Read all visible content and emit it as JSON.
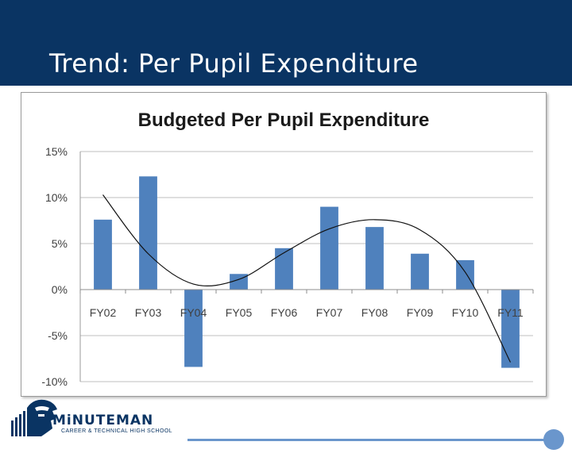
{
  "slide": {
    "title": "Trend: Per Pupil Expenditure"
  },
  "colors": {
    "header": "#0a3463",
    "bar": "#4f81bd",
    "accent": "#6a96cc"
  },
  "logo": {
    "name": "MiNUTEMAN",
    "subtitle": "CAREER & TECHNICAL HIGH SCHOOL"
  },
  "chart_data": {
    "type": "bar",
    "title": "Budgeted Per Pupil Expenditure",
    "categories": [
      "FY02",
      "FY03",
      "FY04",
      "FY05",
      "FY06",
      "FY07",
      "FY08",
      "FY09",
      "FY10",
      "FY11"
    ],
    "values": [
      7.6,
      12.3,
      -8.4,
      1.7,
      4.5,
      9.0,
      6.8,
      3.9,
      3.2,
      -8.5
    ],
    "yunit": "%",
    "ylim": [
      -10,
      15
    ],
    "yticks": [
      15,
      10,
      5,
      0,
      -5,
      -10
    ],
    "ytick_labels": [
      "15%",
      "10%",
      "5%",
      "0%",
      "-5%",
      "-10%"
    ],
    "grid": true,
    "legend": "none",
    "trendline": {
      "type": "polynomial",
      "points": [
        [
          0,
          10.3
        ],
        [
          1,
          3.9
        ],
        [
          2,
          0.6
        ],
        [
          3,
          1.1
        ],
        [
          4,
          4.0
        ],
        [
          5,
          6.6
        ],
        [
          6,
          7.6
        ],
        [
          7,
          6.5
        ],
        [
          8,
          1.9
        ],
        [
          9,
          -7.9
        ]
      ]
    }
  }
}
